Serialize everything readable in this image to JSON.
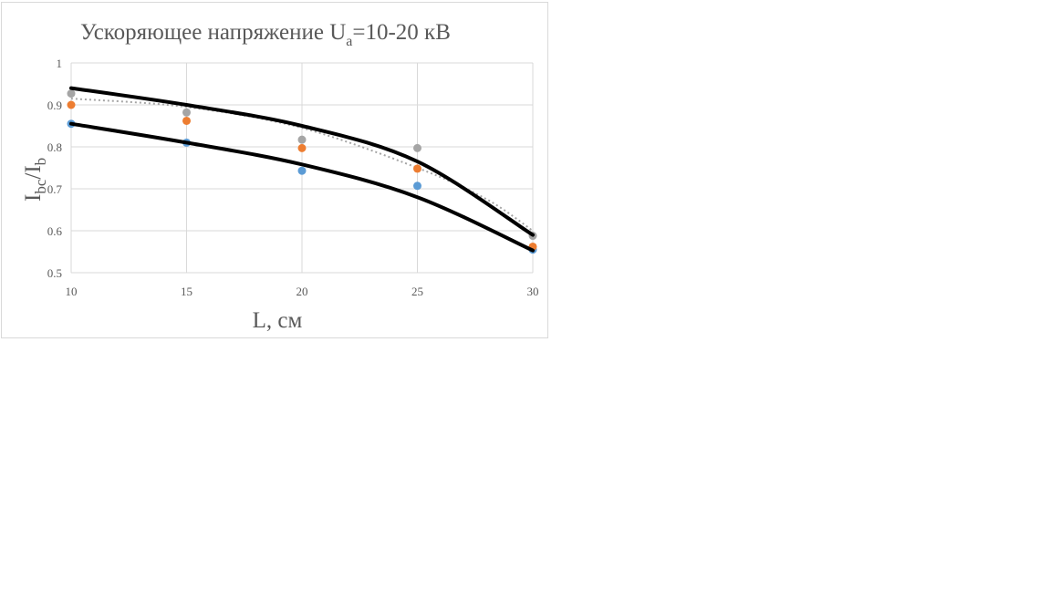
{
  "chart_data": {
    "type": "scatter",
    "title": {
      "main": "Ускоряющее напряжение U",
      "main_sub": "a",
      "suffix": "=10-20 кВ"
    },
    "xlabel": "L, см",
    "ylabel": {
      "base1": "I",
      "sub1": "bc",
      "slash": "/I",
      "sub2": "b"
    },
    "xlim": [
      10,
      30
    ],
    "ylim": [
      0.5,
      1
    ],
    "xticks": [
      "10",
      "15",
      "20",
      "25",
      "30"
    ],
    "yticks": [
      "0.5",
      "0.6",
      "0.7",
      "0.8",
      "0.9",
      "1"
    ],
    "grid": true,
    "series": [
      {
        "color": "#5b9bd5",
        "x": [
          10,
          15,
          20,
          25,
          30
        ],
        "y": [
          0.855,
          0.81,
          0.743,
          0.707,
          0.555
        ]
      },
      {
        "color": "#ed7d31",
        "x": [
          10,
          15,
          20,
          25,
          30
        ],
        "y": [
          0.9,
          0.862,
          0.797,
          0.748,
          0.562
        ]
      },
      {
        "color": "#a5a5a5",
        "x": [
          10,
          15,
          20,
          25,
          30
        ],
        "y": [
          0.927,
          0.882,
          0.817,
          0.797,
          0.588
        ]
      }
    ],
    "trendline": {
      "style": "dotted",
      "color": "#a5a5a5",
      "x": [
        10,
        15,
        20,
        25,
        28,
        30
      ],
      "y": [
        0.915,
        0.895,
        0.845,
        0.75,
        0.675,
        0.6
      ]
    },
    "envelope_curves": [
      {
        "color": "#000000",
        "x": [
          10,
          15,
          20,
          25,
          30
        ],
        "y": [
          0.94,
          0.9,
          0.85,
          0.765,
          0.59
        ]
      },
      {
        "color": "#000000",
        "x": [
          10,
          15,
          20,
          25,
          30
        ],
        "y": [
          0.855,
          0.81,
          0.758,
          0.68,
          0.553
        ]
      }
    ]
  }
}
